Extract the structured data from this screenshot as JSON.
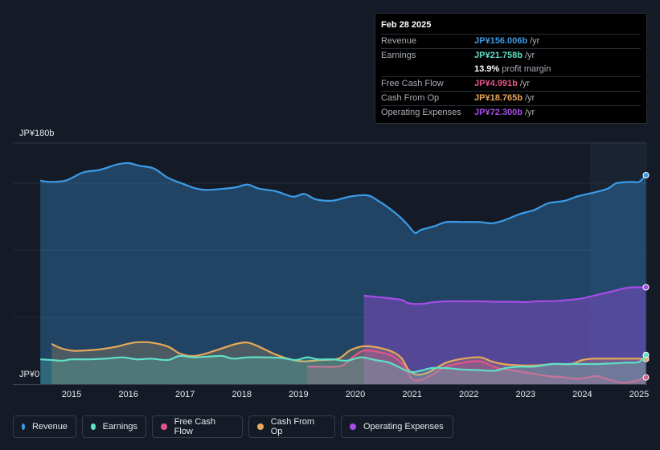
{
  "tooltip": {
    "date": "Feb 28 2025",
    "rows": [
      {
        "label": "Revenue",
        "value": "JP¥156.006b",
        "unit": "/yr",
        "color": "#3b9be8"
      },
      {
        "label": "Earnings",
        "value": "JP¥21.758b",
        "unit": "/yr",
        "color": "#5fe0c8"
      },
      {
        "label": "",
        "value": "13.9%",
        "unit": "profit margin",
        "color": "#ffffff"
      },
      {
        "label": "Free Cash Flow",
        "value": "JP¥4.991b",
        "unit": "/yr",
        "color": "#e0568a"
      },
      {
        "label": "Cash From Op",
        "value": "JP¥18.765b",
        "unit": "/yr",
        "color": "#e8a85a"
      },
      {
        "label": "Operating Expenses",
        "value": "JP¥72.300b",
        "unit": "/yr",
        "color": "#a64ce8"
      }
    ]
  },
  "legend": [
    {
      "label": "Revenue",
      "color": "#3b9be8"
    },
    {
      "label": "Earnings",
      "color": "#5fe0c8"
    },
    {
      "label": "Free Cash Flow",
      "color": "#e0568a"
    },
    {
      "label": "Cash From Op",
      "color": "#e8a85a"
    },
    {
      "label": "Operating Expenses",
      "color": "#a64ce8"
    }
  ],
  "chart_data": {
    "type": "area",
    "y_top_label": "JP¥180b",
    "y_bottom_label": "JP¥0",
    "ylim": [
      0,
      180
    ],
    "xlim": [
      2014.4,
      2025.15
    ],
    "x_ticks": [
      "2015",
      "2016",
      "2017",
      "2018",
      "2019",
      "2020",
      "2021",
      "2022",
      "2023",
      "2024",
      "2025"
    ],
    "series": [
      {
        "name": "Revenue",
        "color": "#3b9be8",
        "points": [
          [
            2014.45,
            152
          ],
          [
            2014.6,
            151
          ],
          [
            2014.9,
            152
          ],
          [
            2015.2,
            158
          ],
          [
            2015.5,
            160
          ],
          [
            2015.8,
            164
          ],
          [
            2016.0,
            165
          ],
          [
            2016.2,
            163
          ],
          [
            2016.45,
            161
          ],
          [
            2016.7,
            154
          ],
          [
            2017.0,
            149
          ],
          [
            2017.2,
            146
          ],
          [
            2017.4,
            145
          ],
          [
            2017.7,
            146
          ],
          [
            2017.9,
            147
          ],
          [
            2018.1,
            149
          ],
          [
            2018.3,
            146
          ],
          [
            2018.6,
            144
          ],
          [
            2018.9,
            140
          ],
          [
            2019.1,
            142
          ],
          [
            2019.3,
            138
          ],
          [
            2019.6,
            137
          ],
          [
            2019.9,
            140
          ],
          [
            2020.2,
            141
          ],
          [
            2020.4,
            137
          ],
          [
            2020.7,
            128
          ],
          [
            2020.9,
            120
          ],
          [
            2021.05,
            113
          ],
          [
            2021.15,
            115
          ],
          [
            2021.4,
            118
          ],
          [
            2021.6,
            121
          ],
          [
            2021.9,
            121
          ],
          [
            2022.2,
            121
          ],
          [
            2022.4,
            120
          ],
          [
            2022.6,
            122
          ],
          [
            2022.9,
            127
          ],
          [
            2023.15,
            130
          ],
          [
            2023.4,
            135
          ],
          [
            2023.7,
            137
          ],
          [
            2023.9,
            140
          ],
          [
            2024.2,
            143
          ],
          [
            2024.45,
            146
          ],
          [
            2024.6,
            150
          ],
          [
            2024.85,
            151
          ],
          [
            2025.0,
            151
          ],
          [
            2025.12,
            156
          ]
        ]
      },
      {
        "name": "Operating Expenses",
        "color": "#a64ce8",
        "points": [
          [
            2020.15,
            66
          ],
          [
            2020.4,
            65
          ],
          [
            2020.8,
            63
          ],
          [
            2020.9,
            61
          ],
          [
            2021.0,
            60
          ],
          [
            2021.2,
            60
          ],
          [
            2021.35,
            61
          ],
          [
            2021.6,
            61.8
          ],
          [
            2021.9,
            61.8
          ],
          [
            2022.2,
            61.8
          ],
          [
            2022.5,
            61.5
          ],
          [
            2022.8,
            61.5
          ],
          [
            2023.0,
            61.2
          ],
          [
            2023.2,
            61.8
          ],
          [
            2023.5,
            62
          ],
          [
            2023.8,
            63
          ],
          [
            2024.0,
            64
          ],
          [
            2024.2,
            66
          ],
          [
            2024.5,
            69
          ],
          [
            2024.8,
            72
          ],
          [
            2025.0,
            72.3
          ],
          [
            2025.12,
            72.3
          ]
        ]
      },
      {
        "name": "Cash From Op",
        "color": "#e8a85a",
        "points": [
          [
            2014.65,
            30
          ],
          [
            2014.8,
            27
          ],
          [
            2015.0,
            25
          ],
          [
            2015.2,
            25
          ],
          [
            2015.5,
            26
          ],
          [
            2015.8,
            28
          ],
          [
            2016.1,
            31
          ],
          [
            2016.4,
            31
          ],
          [
            2016.7,
            28
          ],
          [
            2016.9,
            23
          ],
          [
            2017.1,
            21
          ],
          [
            2017.3,
            22
          ],
          [
            2017.6,
            26
          ],
          [
            2017.9,
            30
          ],
          [
            2018.1,
            31
          ],
          [
            2018.3,
            28
          ],
          [
            2018.6,
            22
          ],
          [
            2018.9,
            18
          ],
          [
            2019.1,
            17
          ],
          [
            2019.4,
            18
          ],
          [
            2019.7,
            19
          ],
          [
            2019.9,
            25
          ],
          [
            2020.1,
            28
          ],
          [
            2020.3,
            28
          ],
          [
            2020.6,
            25
          ],
          [
            2020.8,
            20
          ],
          [
            2020.95,
            10
          ],
          [
            2021.1,
            7
          ],
          [
            2021.3,
            9
          ],
          [
            2021.6,
            16
          ],
          [
            2021.9,
            19
          ],
          [
            2022.2,
            20
          ],
          [
            2022.4,
            17
          ],
          [
            2022.6,
            15
          ],
          [
            2022.9,
            14
          ],
          [
            2023.2,
            14
          ],
          [
            2023.5,
            15
          ],
          [
            2023.8,
            15
          ],
          [
            2024.0,
            18
          ],
          [
            2024.2,
            19
          ],
          [
            2024.5,
            19
          ],
          [
            2024.8,
            19
          ],
          [
            2025.0,
            19
          ],
          [
            2025.12,
            18.8
          ]
        ]
      },
      {
        "name": "Free Cash Flow",
        "color": "#e0568a",
        "points": [
          [
            2019.15,
            13
          ],
          [
            2019.4,
            13
          ],
          [
            2019.75,
            13.5
          ],
          [
            2019.95,
            20
          ],
          [
            2020.15,
            25
          ],
          [
            2020.4,
            24
          ],
          [
            2020.65,
            21
          ],
          [
            2020.85,
            14
          ],
          [
            2021.0,
            4
          ],
          [
            2021.15,
            3
          ],
          [
            2021.35,
            7
          ],
          [
            2021.6,
            13
          ],
          [
            2021.9,
            16
          ],
          [
            2022.2,
            17
          ],
          [
            2022.5,
            12
          ],
          [
            2022.8,
            10
          ],
          [
            2023.1,
            8
          ],
          [
            2023.4,
            6
          ],
          [
            2023.7,
            5
          ],
          [
            2023.9,
            4
          ],
          [
            2024.1,
            5
          ],
          [
            2024.25,
            6
          ],
          [
            2024.5,
            3
          ],
          [
            2024.7,
            1
          ],
          [
            2024.9,
            2
          ],
          [
            2025.12,
            5
          ]
        ]
      },
      {
        "name": "Earnings",
        "color": "#5fe0c8",
        "points": [
          [
            2014.45,
            18.5
          ],
          [
            2014.65,
            18
          ],
          [
            2014.85,
            17.5
          ],
          [
            2015.0,
            18.5
          ],
          [
            2015.3,
            18.5
          ],
          [
            2015.6,
            19
          ],
          [
            2015.9,
            20
          ],
          [
            2016.15,
            18.5
          ],
          [
            2016.4,
            19
          ],
          [
            2016.7,
            18
          ],
          [
            2016.9,
            21
          ],
          [
            2017.15,
            20
          ],
          [
            2017.4,
            20.5
          ],
          [
            2017.65,
            21
          ],
          [
            2017.85,
            19
          ],
          [
            2018.1,
            20
          ],
          [
            2018.4,
            20
          ],
          [
            2018.7,
            19.5
          ],
          [
            2018.95,
            18
          ],
          [
            2019.15,
            20
          ],
          [
            2019.35,
            18.5
          ],
          [
            2019.6,
            18.5
          ],
          [
            2019.85,
            17.5
          ],
          [
            2020.1,
            20
          ],
          [
            2020.35,
            18
          ],
          [
            2020.6,
            16
          ],
          [
            2020.85,
            11
          ],
          [
            2021.0,
            9
          ],
          [
            2021.15,
            10
          ],
          [
            2021.35,
            12
          ],
          [
            2021.6,
            12
          ],
          [
            2021.85,
            11
          ],
          [
            2022.15,
            10.5
          ],
          [
            2022.45,
            10
          ],
          [
            2022.65,
            12
          ],
          [
            2022.9,
            13
          ],
          [
            2023.15,
            13
          ],
          [
            2023.45,
            15
          ],
          [
            2023.7,
            15
          ],
          [
            2023.95,
            15
          ],
          [
            2024.25,
            15
          ],
          [
            2024.55,
            15.5
          ],
          [
            2024.8,
            16
          ],
          [
            2025.0,
            16.5
          ],
          [
            2025.12,
            21.8
          ]
        ]
      }
    ]
  }
}
